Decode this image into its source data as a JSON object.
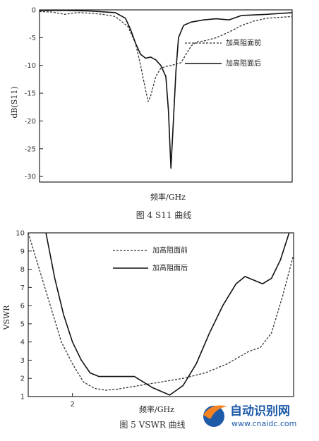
{
  "chart_data": [
    {
      "type": "line",
      "caption": "图 4 S11 曲线",
      "xlabel": "频率/GHz",
      "ylabel": "dB(S11)",
      "ylim": [
        -31,
        0
      ],
      "xlim": [
        0,
        100
      ],
      "yticks": [
        0,
        -5,
        -10,
        -15,
        -20,
        -25,
        -30
      ],
      "grid": false,
      "legend_position": "right",
      "series": [
        {
          "name": "加高阻面前",
          "style": "dashed",
          "points": [
            [
              0,
              -0.3
            ],
            [
              5,
              -0.4
            ],
            [
              10,
              -0.8
            ],
            [
              15,
              -0.5
            ],
            [
              20,
              -0.6
            ],
            [
              25,
              -0.8
            ],
            [
              30,
              -1.2
            ],
            [
              35,
              -3
            ],
            [
              38,
              -6
            ],
            [
              40,
              -10
            ],
            [
              42,
              -14.5
            ],
            [
              43,
              -16.5
            ],
            [
              44,
              -15.5
            ],
            [
              46,
              -12
            ],
            [
              48,
              -10.5
            ],
            [
              50,
              -10.2
            ],
            [
              54,
              -9.8
            ],
            [
              56,
              -9.5
            ],
            [
              58,
              -8
            ],
            [
              60,
              -6.5
            ],
            [
              62,
              -5.8
            ],
            [
              66,
              -5.5
            ],
            [
              70,
              -5
            ],
            [
              75,
              -4
            ],
            [
              80,
              -2.8
            ],
            [
              85,
              -2
            ],
            [
              90,
              -1.5
            ],
            [
              100,
              -1.2
            ]
          ]
        },
        {
          "name": "加高阻面后",
          "style": "solid",
          "points": [
            [
              0,
              -0.1
            ],
            [
              10,
              -0.1
            ],
            [
              20,
              -0.2
            ],
            [
              30,
              -0.5
            ],
            [
              34,
              -1.5
            ],
            [
              36,
              -3.5
            ],
            [
              38,
              -6
            ],
            [
              40,
              -8
            ],
            [
              42,
              -8.7
            ],
            [
              44,
              -8.5
            ],
            [
              46,
              -9
            ],
            [
              48,
              -10
            ],
            [
              50,
              -12
            ],
            [
              51,
              -18
            ],
            [
              52,
              -28.5
            ],
            [
              53,
              -20
            ],
            [
              54,
              -11
            ],
            [
              55,
              -5
            ],
            [
              57,
              -2.8
            ],
            [
              60,
              -2.2
            ],
            [
              65,
              -1.8
            ],
            [
              70,
              -1.6
            ],
            [
              75,
              -1.8
            ],
            [
              80,
              -1
            ],
            [
              90,
              -0.8
            ],
            [
              100,
              -0.5
            ]
          ]
        }
      ]
    },
    {
      "type": "line",
      "caption": "图 5 VSWR 曲线",
      "xlabel": "频率/GHz",
      "ylabel": "VSWR",
      "ylim": [
        1,
        10
      ],
      "xlim": [
        1.8,
        3.0
      ],
      "yticks": [
        1,
        2,
        3,
        4,
        5,
        6,
        7,
        8,
        9,
        10
      ],
      "xticks": [
        2
      ],
      "grid": false,
      "legend_position": "top-left",
      "series": [
        {
          "name": "加高阻面前",
          "style": "dashed",
          "points": [
            [
              1.8,
              10
            ],
            [
              1.85,
              8
            ],
            [
              1.9,
              6
            ],
            [
              1.95,
              4
            ],
            [
              2.0,
              2.8
            ],
            [
              2.05,
              1.8
            ],
            [
              2.1,
              1.45
            ],
            [
              2.15,
              1.35
            ],
            [
              2.2,
              1.4
            ],
            [
              2.3,
              1.6
            ],
            [
              2.4,
              1.8
            ],
            [
              2.5,
              2.0
            ],
            [
              2.6,
              2.3
            ],
            [
              2.7,
              2.8
            ],
            [
              2.8,
              3.5
            ],
            [
              2.85,
              3.7
            ],
            [
              2.9,
              4.5
            ],
            [
              2.95,
              6.5
            ],
            [
              3.0,
              8.8
            ]
          ]
        },
        {
          "name": "加高阻面后",
          "style": "solid",
          "points": [
            [
              1.88,
              10
            ],
            [
              1.92,
              7.5
            ],
            [
              1.96,
              5.5
            ],
            [
              2.0,
              4
            ],
            [
              2.04,
              3
            ],
            [
              2.08,
              2.3
            ],
            [
              2.12,
              2.1
            ],
            [
              2.2,
              2.1
            ],
            [
              2.28,
              2.1
            ],
            [
              2.36,
              1.5
            ],
            [
              2.44,
              1.08
            ],
            [
              2.5,
              1.6
            ],
            [
              2.56,
              2.8
            ],
            [
              2.62,
              4.5
            ],
            [
              2.68,
              6
            ],
            [
              2.74,
              7.2
            ],
            [
              2.78,
              7.6
            ],
            [
              2.82,
              7.4
            ],
            [
              2.86,
              7.2
            ],
            [
              2.9,
              7.5
            ],
            [
              2.94,
              8.5
            ],
            [
              2.98,
              10
            ]
          ]
        }
      ]
    }
  ],
  "logo": {
    "title": "自动识别网",
    "url": "www.cnaidc.com",
    "color_orange": "#f58220",
    "color_blue": "#1e5aa8"
  },
  "watermark_color": "#9cc3e6",
  "ink_color": "#1a1a1a"
}
